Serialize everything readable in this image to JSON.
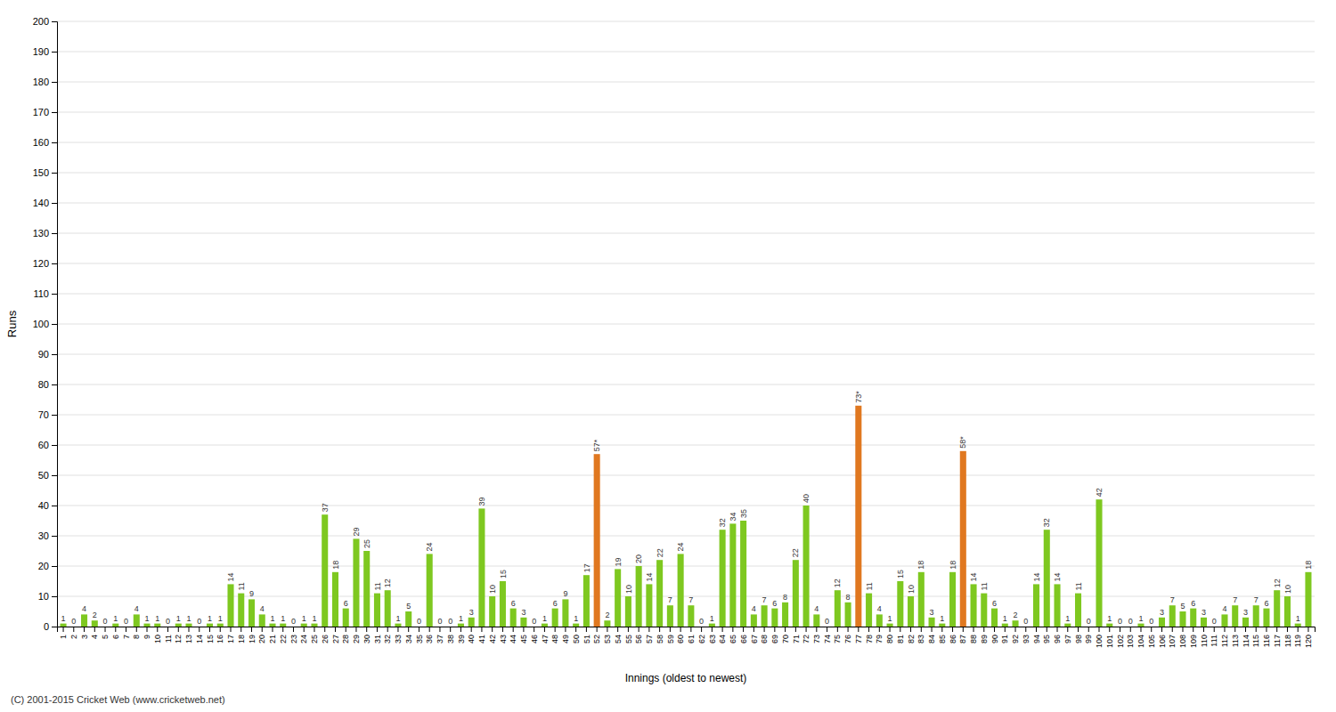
{
  "chart_data": {
    "type": "bar",
    "xlabel": "Innings (oldest to newest)",
    "ylabel": "Runs",
    "annotations": [
      "(C) 2001-2015 Cricket Web (www.cricketweb.net)"
    ],
    "categories": [
      "1",
      "2",
      "3",
      "4",
      "5",
      "6",
      "7",
      "8",
      "9",
      "10",
      "11",
      "12",
      "13",
      "14",
      "15",
      "16",
      "17",
      "18",
      "19",
      "20",
      "21",
      "22",
      "23",
      "24",
      "25",
      "26",
      "27",
      "28",
      "29",
      "30",
      "31",
      "32",
      "33",
      "34",
      "35",
      "36",
      "37",
      "38",
      "39",
      "40",
      "41",
      "42",
      "43",
      "44",
      "45",
      "46",
      "47",
      "48",
      "49",
      "50",
      "51",
      "52",
      "53",
      "54",
      "55",
      "56",
      "57",
      "58",
      "59",
      "60",
      "61",
      "62",
      "63",
      "64",
      "65",
      "66",
      "67",
      "68",
      "69",
      "70",
      "71",
      "72",
      "73",
      "74",
      "75",
      "76",
      "77",
      "78",
      "79",
      "80",
      "81",
      "82",
      "83",
      "84",
      "85",
      "86",
      "87",
      "88",
      "89",
      "90",
      "91",
      "92",
      "93",
      "94",
      "95",
      "96",
      "97",
      "98",
      "99",
      "100",
      "101",
      "102",
      "103",
      "104",
      "105",
      "106",
      "107",
      "108",
      "109",
      "110",
      "111",
      "112",
      "113",
      "114",
      "115",
      "116",
      "117",
      "118",
      "119",
      "120"
    ],
    "values": [
      1,
      0,
      4,
      2,
      0,
      1,
      0,
      4,
      1,
      1,
      0,
      1,
      1,
      0,
      1,
      1,
      14,
      11,
      9,
      4,
      1,
      1,
      0,
      1,
      1,
      37,
      18,
      6,
      29,
      25,
      11,
      12,
      1,
      5,
      0,
      24,
      0,
      0,
      1,
      3,
      39,
      10,
      15,
      6,
      3,
      0,
      1,
      6,
      9,
      1,
      17,
      57,
      2,
      19,
      10,
      20,
      14,
      22,
      7,
      24,
      7,
      0,
      1,
      32,
      34,
      35,
      4,
      7,
      6,
      8,
      22,
      40,
      4,
      0,
      12,
      8,
      73,
      11,
      4,
      1,
      15,
      10,
      18,
      3,
      1,
      18,
      58,
      14,
      11,
      6,
      1,
      2,
      0,
      14,
      32,
      14,
      1,
      11,
      0,
      42,
      1,
      0,
      0,
      1,
      0,
      3,
      7,
      5,
      6,
      3,
      0,
      4,
      7,
      3,
      7,
      6,
      12,
      10,
      1,
      18
    ],
    "value_labels": [
      "1",
      "0",
      "4",
      "2",
      "0",
      "1",
      "0",
      "4",
      "1",
      "1",
      "0",
      "1",
      "1",
      "0",
      "1",
      "1",
      "14",
      "11",
      "9",
      "4",
      "1",
      "1",
      "0",
      "1",
      "1",
      "37",
      "18",
      "6",
      "29",
      "25",
      "11",
      "12",
      "1",
      "5",
      "0",
      "24",
      "0",
      "0",
      "1",
      "3",
      "39",
      "10",
      "15",
      "6",
      "3",
      "0",
      "1",
      "6",
      "9",
      "1",
      "17",
      "57*",
      "2",
      "19",
      "10",
      "20",
      "14",
      "22",
      "7",
      "24",
      "7",
      "0",
      "1",
      "32",
      "34",
      "35",
      "4",
      "7",
      "6",
      "8",
      "22",
      "40",
      "4",
      "0",
      "12",
      "8",
      "73*",
      "11",
      "4",
      "1",
      "15",
      "10",
      "18",
      "3",
      "1",
      "18",
      "58*",
      "14",
      "11",
      "6",
      "1",
      "2",
      "0",
      "14",
      "32",
      "14",
      "1",
      "11",
      "0",
      "42",
      "1",
      "0",
      "0",
      "1",
      "0",
      "3",
      "7",
      "5",
      "6",
      "3",
      "0",
      "4",
      "7",
      "3",
      "7",
      "6",
      "12",
      "10",
      "1",
      "18"
    ],
    "colors": [
      "#7ec820",
      "#7ec820",
      "#7ec820",
      "#7ec820",
      "#7ec820",
      "#7ec820",
      "#7ec820",
      "#7ec820",
      "#7ec820",
      "#7ec820",
      "#7ec820",
      "#7ec820",
      "#7ec820",
      "#7ec820",
      "#7ec820",
      "#7ec820",
      "#7ec820",
      "#7ec820",
      "#7ec820",
      "#7ec820",
      "#7ec820",
      "#7ec820",
      "#7ec820",
      "#7ec820",
      "#7ec820",
      "#7ec820",
      "#7ec820",
      "#7ec820",
      "#7ec820",
      "#7ec820",
      "#7ec820",
      "#7ec820",
      "#7ec820",
      "#7ec820",
      "#7ec820",
      "#7ec820",
      "#7ec820",
      "#7ec820",
      "#7ec820",
      "#7ec820",
      "#7ec820",
      "#7ec820",
      "#7ec820",
      "#7ec820",
      "#7ec820",
      "#7ec820",
      "#7ec820",
      "#7ec820",
      "#7ec820",
      "#7ec820",
      "#7ec820",
      "#e07820",
      "#7ec820",
      "#7ec820",
      "#7ec820",
      "#7ec820",
      "#7ec820",
      "#7ec820",
      "#7ec820",
      "#7ec820",
      "#7ec820",
      "#7ec820",
      "#7ec820",
      "#7ec820",
      "#7ec820",
      "#7ec820",
      "#7ec820",
      "#7ec820",
      "#7ec820",
      "#7ec820",
      "#7ec820",
      "#7ec820",
      "#7ec820",
      "#7ec820",
      "#7ec820",
      "#7ec820",
      "#e07820",
      "#7ec820",
      "#7ec820",
      "#7ec820",
      "#7ec820",
      "#7ec820",
      "#7ec820",
      "#7ec820",
      "#7ec820",
      "#7ec820",
      "#e07820",
      "#7ec820",
      "#7ec820",
      "#7ec820",
      "#7ec820",
      "#7ec820",
      "#7ec820",
      "#7ec820",
      "#7ec820",
      "#7ec820",
      "#7ec820",
      "#7ec820",
      "#7ec820",
      "#7ec820",
      "#7ec820",
      "#7ec820",
      "#7ec820",
      "#7ec820",
      "#7ec820",
      "#7ec820",
      "#7ec820",
      "#7ec820",
      "#7ec820",
      "#7ec820",
      "#7ec820",
      "#7ec820",
      "#7ec820",
      "#7ec820",
      "#7ec820",
      "#7ec820",
      "#7ec820",
      "#7ec820",
      "#7ec820",
      "#7ec820"
    ],
    "ylim": [
      0,
      200
    ],
    "yticks": [
      0,
      10,
      20,
      30,
      40,
      50,
      60,
      70,
      80,
      90,
      100,
      110,
      120,
      130,
      140,
      150,
      160,
      170,
      180,
      190,
      200
    ],
    "grid": true,
    "data_labels": true
  }
}
